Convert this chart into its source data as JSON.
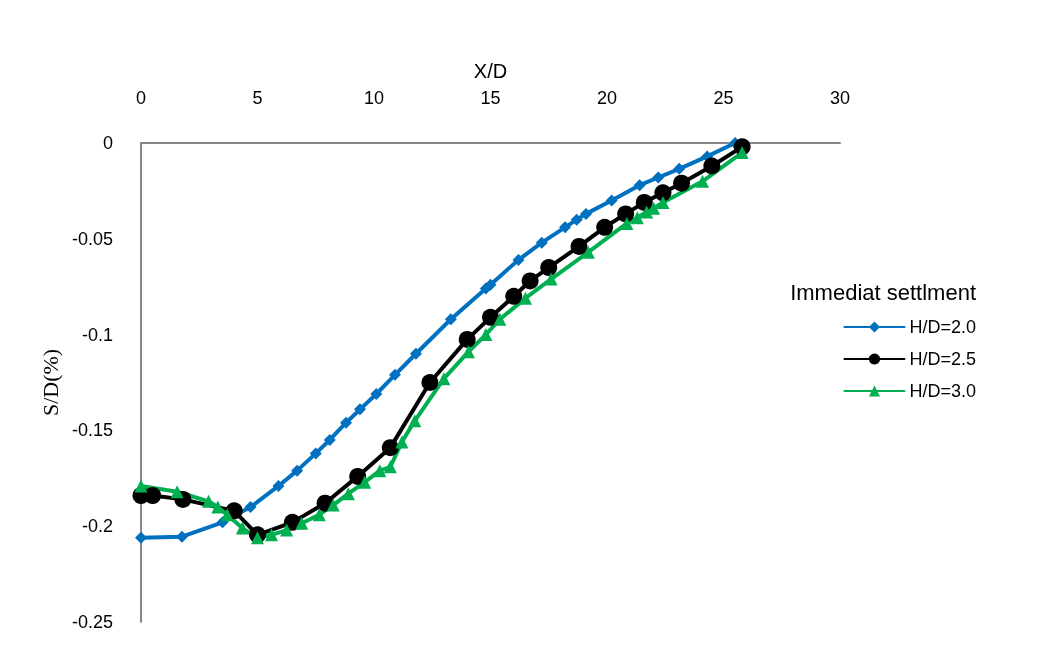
{
  "chart_data": {
    "type": "line",
    "xlabel": "X/D",
    "ylabel": "S/D(%)",
    "legend_title": "Immediat settlment",
    "legend": "right",
    "xlim": [
      0,
      30
    ],
    "xticks": [
      0,
      5,
      10,
      15,
      20,
      25,
      30
    ],
    "ylim": [
      -0.25,
      0
    ],
    "yticks": [
      0,
      -0.05,
      -0.1,
      -0.15,
      -0.2,
      -0.25
    ],
    "grid": false,
    "series": [
      {
        "name": "H/D=2.0",
        "color": "#0070c0",
        "marker": "diamond",
        "x": [
          0,
          1.76,
          3.5,
          4.7,
          5.9,
          6.7,
          7.5,
          8.1,
          8.8,
          9.4,
          10.1,
          10.9,
          11.8,
          13.3,
          14.8,
          15.0,
          16.2,
          17.2,
          18.2,
          18.7,
          19.1,
          20.2,
          21.4,
          22.2,
          23.1,
          24.3,
          25.5
        ],
        "values": [
          -0.206,
          -0.2055,
          -0.198,
          -0.19,
          -0.179,
          -0.171,
          -0.162,
          -0.155,
          -0.146,
          -0.139,
          -0.131,
          -0.121,
          -0.11,
          -0.092,
          -0.076,
          -0.074,
          -0.061,
          -0.052,
          -0.044,
          -0.04,
          -0.037,
          -0.03,
          -0.022,
          -0.018,
          -0.0135,
          -0.007,
          0
        ]
      },
      {
        "name": "H/D=2.5",
        "color": "#000000",
        "marker": "circle",
        "x": [
          0,
          0.5,
          1.8,
          4.0,
          5.0,
          6.5,
          7.9,
          9.3,
          10.7,
          12.4,
          14.0,
          15.0,
          16.0,
          16.7,
          17.5,
          18.8,
          19.9,
          20.8,
          21.6,
          22.4,
          23.2,
          24.5,
          25.8
        ],
        "values": [
          -0.184,
          -0.184,
          -0.186,
          -0.192,
          -0.2045,
          -0.198,
          -0.188,
          -0.174,
          -0.159,
          -0.125,
          -0.1025,
          -0.091,
          -0.08,
          -0.072,
          -0.065,
          -0.054,
          -0.044,
          -0.037,
          -0.031,
          -0.026,
          -0.021,
          -0.012,
          -0.002
        ]
      },
      {
        "name": "H/D=3.0",
        "color": "#00b050",
        "marker": "triangle",
        "x": [
          0,
          1.55,
          2.9,
          3.3,
          3.7,
          4.35,
          5.0,
          5.6,
          6.25,
          6.9,
          7.65,
          8.25,
          8.9,
          9.6,
          10.25,
          10.7,
          11.2,
          11.75,
          13.0,
          14.05,
          14.8,
          15.4,
          16.5,
          17.6,
          19.2,
          20.85,
          21.3,
          21.7,
          22.0,
          22.4,
          24.1,
          25.8
        ],
        "values": [
          -0.179,
          -0.182,
          -0.187,
          -0.19,
          -0.194,
          -0.201,
          -0.206,
          -0.2045,
          -0.202,
          -0.1985,
          -0.194,
          -0.189,
          -0.183,
          -0.177,
          -0.171,
          -0.169,
          -0.156,
          -0.145,
          -0.123,
          -0.109,
          -0.1,
          -0.092,
          -0.081,
          -0.071,
          -0.057,
          -0.042,
          -0.039,
          -0.036,
          -0.034,
          -0.031,
          -0.02,
          -0.005
        ]
      }
    ]
  }
}
